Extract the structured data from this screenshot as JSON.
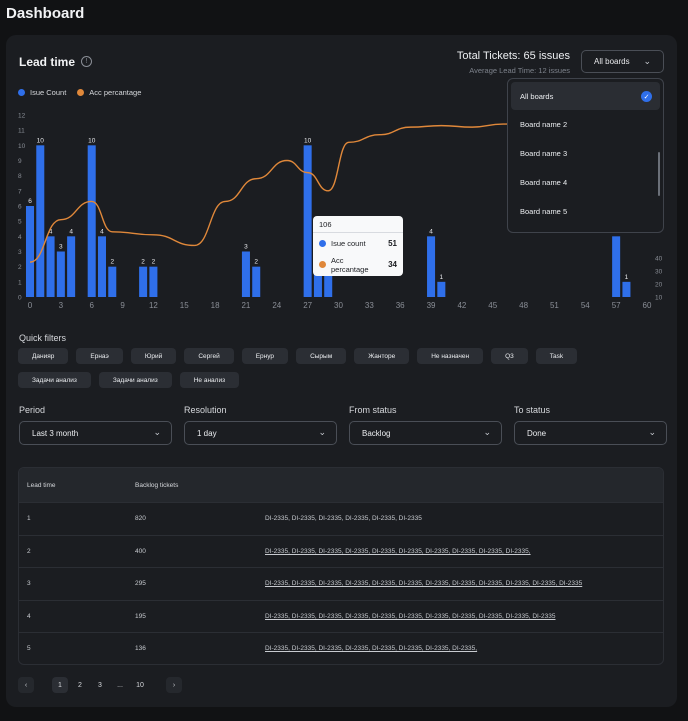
{
  "page": {
    "title": "Dashboard"
  },
  "card": {
    "title": "Lead time",
    "total": "Total Tickets: 65 issues",
    "avg": "Average Lead Time: 12 issues",
    "boards_button": "All boards"
  },
  "legend": {
    "count": "Isue Count",
    "acc": "Acc percantage"
  },
  "colors": {
    "bar": "#2f6fea",
    "line": "#e0883a",
    "bg": "#1b1d21"
  },
  "chart_data": {
    "type": "bar",
    "x_ticks": [
      0,
      3,
      6,
      9,
      12,
      15,
      18,
      21,
      24,
      27,
      30,
      33,
      36,
      39,
      42,
      45,
      48,
      51,
      54,
      57,
      60
    ],
    "y_ticks_left": [
      0,
      1,
      2,
      3,
      4,
      5,
      6,
      7,
      8,
      9,
      10,
      11,
      12
    ],
    "y_ticks_right": [
      10,
      20,
      30,
      40
    ],
    "ylim": [
      0,
      12
    ],
    "bars": [
      {
        "x": 0,
        "value": 6,
        "label": "6"
      },
      {
        "x": 1,
        "value": 10,
        "label": "10"
      },
      {
        "x": 2,
        "value": 4,
        "label": "4"
      },
      {
        "x": 3,
        "value": 3,
        "label": "3"
      },
      {
        "x": 4,
        "value": 4,
        "label": "4"
      },
      {
        "x": 6,
        "value": 10,
        "label": "10"
      },
      {
        "x": 7,
        "value": 4,
        "label": "4"
      },
      {
        "x": 8,
        "value": 2,
        "label": "2"
      },
      {
        "x": 11,
        "value": 2,
        "label": "2"
      },
      {
        "x": 12,
        "value": 2,
        "label": "2"
      },
      {
        "x": 21,
        "value": 3,
        "label": "3"
      },
      {
        "x": 22,
        "value": 2,
        "label": "2"
      },
      {
        "x": 27,
        "value": 10,
        "label": "10"
      },
      {
        "x": 28,
        "value": 4,
        "label": ""
      },
      {
        "x": 29,
        "value": 4,
        "label": ""
      },
      {
        "x": 39,
        "value": 4,
        "label": "4"
      },
      {
        "x": 40,
        "value": 1,
        "label": "1"
      },
      {
        "x": 57,
        "value": 4,
        "label": ""
      },
      {
        "x": 58,
        "value": 1,
        "label": "1"
      }
    ],
    "series": [
      {
        "name": "Acc percantage",
        "x": [
          0,
          3,
          6,
          8,
          12,
          16,
          19,
          22,
          25,
          27,
          29,
          31,
          34,
          37,
          40,
          43,
          46,
          49,
          52
        ],
        "values": [
          2.3,
          5.1,
          6.3,
          4.3,
          4.1,
          3.4,
          6.3,
          7.8,
          9.0,
          8.2,
          7.0,
          10.2,
          10.7,
          11.2,
          11.3,
          11.2,
          11.4,
          11.5,
          11.4
        ]
      }
    ]
  },
  "tooltip": {
    "title": "106",
    "r1_label": "Isue count",
    "r1_value": "51",
    "r2_label": "Acc percantage",
    "r2_value": "34"
  },
  "dropdown": {
    "items": [
      "All boards",
      "Board name 2",
      "Board name 3",
      "Board name 4",
      "Board name 5"
    ]
  },
  "quick_filters": {
    "label": "Quick filters",
    "chips": [
      "Данияр",
      "Ернаэ",
      "Юрий",
      "Сергей",
      "Ернур",
      "Сырым",
      "Жанторе",
      "Не назначен",
      "Q3",
      "Task",
      "Задачи анализ",
      "Задачи анализ",
      "Не анализ"
    ]
  },
  "filters": {
    "period": {
      "label": "Period",
      "value": "Last 3 month"
    },
    "resolution": {
      "label": "Resolution",
      "value": "1 day"
    },
    "from": {
      "label": "From status",
      "value": "Backlog"
    },
    "to": {
      "label": "To status",
      "value": "Done"
    }
  },
  "table": {
    "headers": [
      "Lead time",
      "Backlog tickets",
      ""
    ],
    "rows": [
      [
        "1",
        "820",
        "DI-2335, DI-2335, DI-2335, DI-2335, DI-2335, DI-2335"
      ],
      [
        "2",
        "400",
        "DI-2335, DI-2335, DI-2335, DI-2335, DI-2335, DI-2335, DI-2335, DI-2335, DI-2335, DI-2335,"
      ],
      [
        "3",
        "295",
        "DI-2335, DI-2335, DI-2335, DI-2335, DI-2335, DI-2335, DI-2335, DI-2335, DI-2335, DI-2335, DI-2335, DI-2335"
      ],
      [
        "4",
        "195",
        "DI-2335, DI-2335, DI-2335, DI-2335, DI-2335, DI-2335, DI-2335, DI-2335, DI-2335, DI-2335, DI-2335"
      ],
      [
        "5",
        "136",
        "DI-2335, DI-2335, DI-2335, DI-2335, DI-2335, DI-2335, DI-2335, DI-2335,"
      ]
    ]
  },
  "pagination": {
    "pages": [
      "1",
      "2",
      "3",
      "...",
      "10"
    ],
    "prev": "‹",
    "next": "›"
  }
}
